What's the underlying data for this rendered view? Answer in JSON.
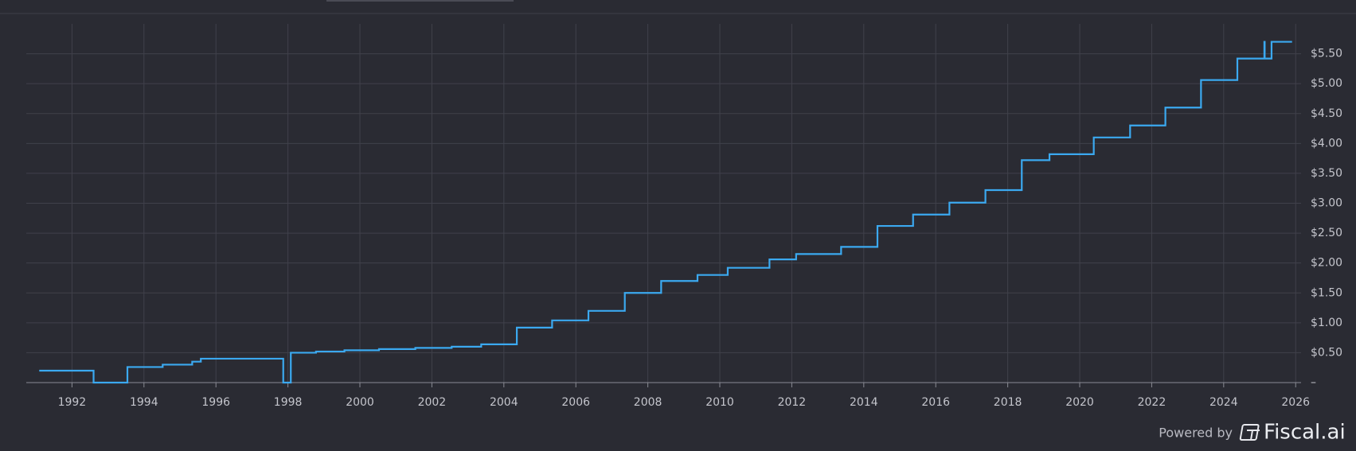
{
  "chart_data": {
    "type": "line",
    "step": "after",
    "x": [
      1991.09,
      1992.6,
      1993.54,
      1994.52,
      1995.34,
      1995.58,
      1997.87,
      1998.08,
      1998.78,
      1999.57,
      2000.53,
      2001.54,
      2002.55,
      2003.37,
      2004.36,
      2005.34,
      2006.35,
      2007.36,
      2008.37,
      2009.38,
      2010.22,
      2011.38,
      2012.12,
      2013.37,
      2014.38,
      2015.37,
      2016.38,
      2017.38,
      2018.39,
      2019.16,
      2020.39,
      2021.4,
      2022.38,
      2023.37,
      2024.38,
      2025.13,
      2025.14,
      2025.33,
      2025.9
    ],
    "values": [
      0.2,
      0,
      0.26,
      0.3,
      0.35,
      0.4,
      0,
      0.5,
      0.52,
      0.54,
      0.56,
      0.58,
      0.6,
      0.64,
      0.92,
      1.04,
      1.2,
      1.5,
      1.7,
      1.8,
      1.92,
      2.06,
      2.15,
      2.27,
      2.62,
      2.81,
      3.01,
      3.22,
      3.72,
      3.82,
      4.1,
      4.3,
      4.6,
      5.06,
      5.42,
      5.7,
      5.42,
      5.7,
      5.7
    ],
    "color": "#3ba9f0",
    "xlim": [
      1990.73,
      2026.15
    ],
    "xticks": [
      1992,
      1994,
      1996,
      1998,
      2000,
      2002,
      2004,
      2006,
      2008,
      2010,
      2012,
      2014,
      2016,
      2018,
      2020,
      2022,
      2024,
      2026
    ],
    "ylim": [
      0,
      6
    ],
    "yticks": [
      {
        "value": 0,
        "label": "–"
      },
      {
        "value": 0.5,
        "label": "$0.50"
      },
      {
        "value": 1,
        "label": "$1.00"
      },
      {
        "value": 1.5,
        "label": "$1.50"
      },
      {
        "value": 2,
        "label": "$2.00"
      },
      {
        "value": 2.5,
        "label": "$2.50"
      },
      {
        "value": 3,
        "label": "$3.00"
      },
      {
        "value": 3.5,
        "label": "$3.50"
      },
      {
        "value": 4,
        "label": "$4.00"
      },
      {
        "value": 4.5,
        "label": "$4.50"
      },
      {
        "value": 5,
        "label": "$5.00"
      },
      {
        "value": 5.5,
        "label": "$5.50"
      }
    ],
    "grid": true
  },
  "footer": {
    "powered_by": "Powered by",
    "brand": "Fiscal.ai"
  }
}
